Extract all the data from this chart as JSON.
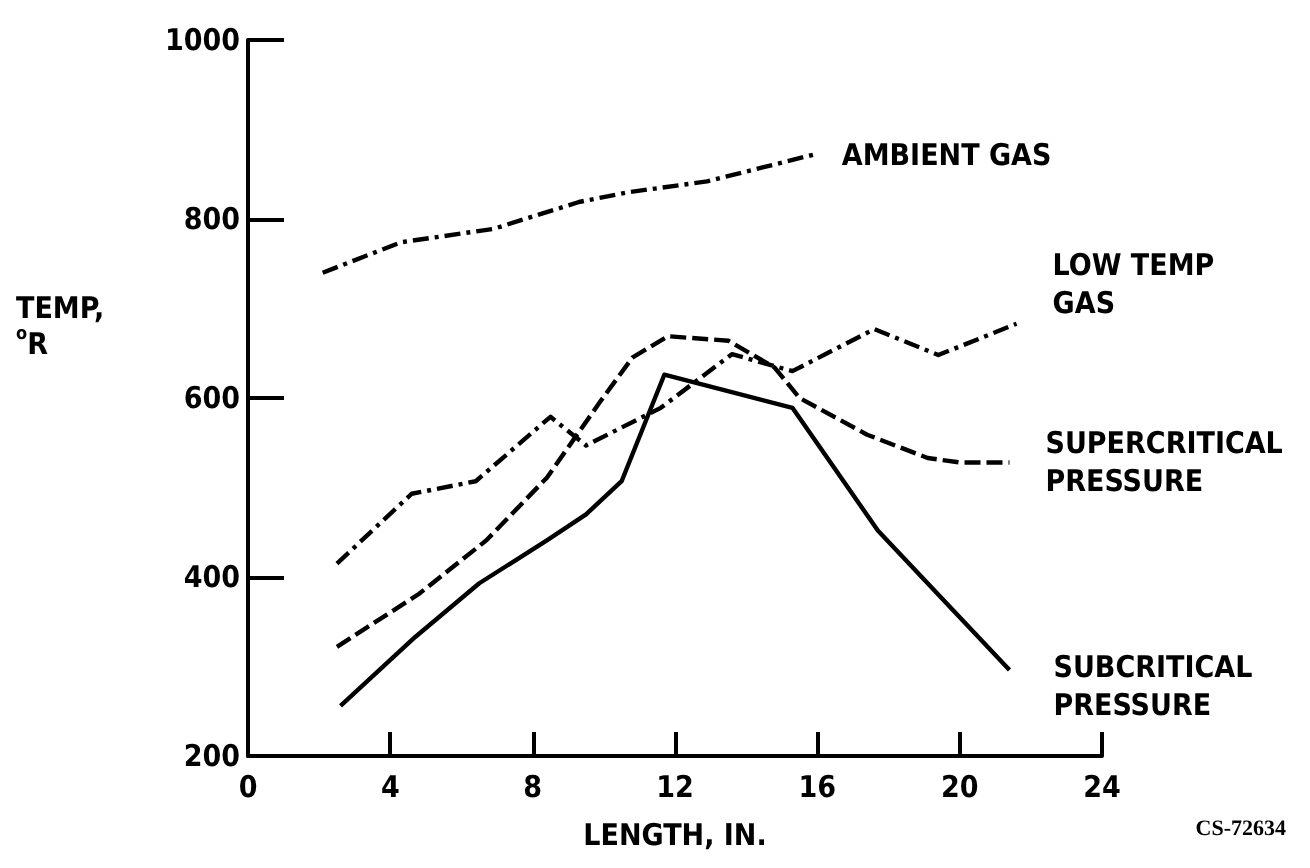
{
  "chart_data": {
    "type": "line",
    "xlabel": "LENGTH, IN.",
    "ylabel": "TEMP,\n$^{o}$R",
    "xlim": [
      0,
      24
    ],
    "xticks": [
      0,
      4,
      8,
      12,
      16,
      20,
      24
    ],
    "ylim": [
      200,
      1000
    ],
    "yticks": [
      200,
      400,
      600,
      800,
      1000
    ],
    "grid": false,
    "legend": false,
    "marker": "none",
    "annotations": [
      "CS-72634"
    ],
    "series": [
      {
        "name": "AMBIENT GAS",
        "color": "#000000",
        "line_style": "dashdot",
        "x": [
          2.1,
          4.3,
          6.9,
          9.3,
          10.7,
          12.9,
          15.9
        ],
        "values": [
          740,
          774,
          789,
          819,
          830,
          842,
          872
        ]
      },
      {
        "name": "LOW TEMP\nGAS",
        "color": "#000000",
        "line_style": "dashdot",
        "x": [
          2.5,
          4.6,
          6.4,
          8.5,
          9.5,
          11.6,
          13.6,
          15.3,
          17.6,
          19.4,
          21.6
        ],
        "values": [
          415,
          493,
          507,
          579,
          547,
          589,
          649,
          630,
          677,
          648,
          683
        ]
      },
      {
        "name": "SUPERCRITICAL\nPRESSURE",
        "color": "#000000",
        "line_style": "dashed",
        "x": [
          2.5,
          4.8,
          6.7,
          8.4,
          9.9,
          10.8,
          11.8,
          13.5,
          14.8,
          15.5,
          17.4,
          19.1,
          20.0,
          21.4
        ],
        "values": [
          322,
          381,
          441,
          511,
          596,
          645,
          669,
          664,
          634,
          600,
          559,
          533,
          528,
          528
        ]
      },
      {
        "name": "SUBCRITICAL\nPRESSURE",
        "color": "#000000",
        "line_style": "solid",
        "x": [
          2.6,
          4.7,
          6.5,
          8.4,
          9.5,
          10.5,
          11.7,
          15.3,
          17.7,
          21.4
        ],
        "values": [
          256,
          333,
          393,
          441,
          470,
          507,
          626,
          589,
          452,
          296
        ]
      }
    ]
  }
}
